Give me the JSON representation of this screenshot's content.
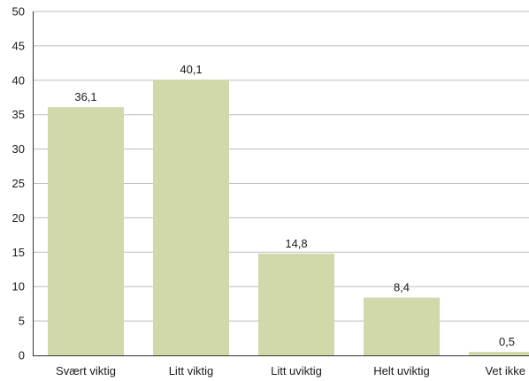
{
  "colors": {
    "bar": "#d1d8a9",
    "grid": "#bdbdbd",
    "axis": "#333333"
  },
  "chart_data": {
    "type": "bar",
    "categories": [
      "Svært viktig",
      "Litt viktig",
      "Litt uviktig",
      "Helt uviktig",
      "Vet ikke"
    ],
    "values": [
      36.1,
      40.1,
      14.8,
      8.4,
      0.5
    ],
    "value_labels": [
      "36,1",
      "40,1",
      "14,8",
      "8,4",
      "0,5"
    ],
    "title": "",
    "xlabel": "",
    "ylabel": "",
    "ylim": [
      0,
      50
    ],
    "yticks": [
      0,
      5,
      10,
      15,
      20,
      25,
      30,
      35,
      40,
      45,
      50
    ],
    "grid": true,
    "legend": "none"
  }
}
